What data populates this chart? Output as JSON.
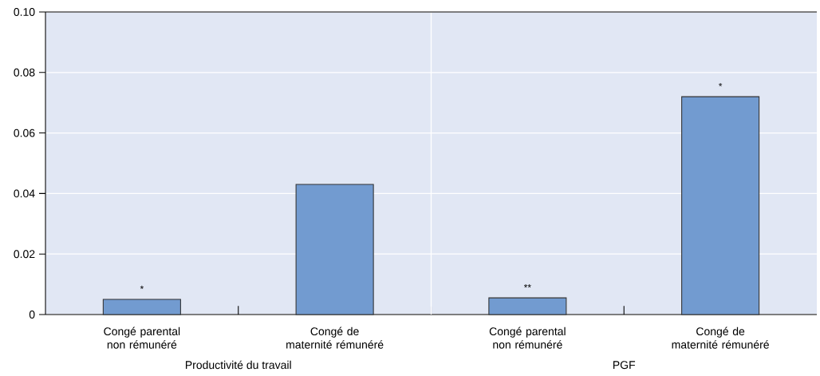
{
  "chart_data": {
    "type": "bar",
    "categories": [
      "Congé parental non rémunéré",
      "Congé de maternité rémunéré",
      "Congé parental non rémunéré",
      "Congé de maternité rémunéré"
    ],
    "values": [
      0.005,
      0.043,
      0.0055,
      0.072
    ],
    "color": "#729bd0",
    "value_labels": [
      "*",
      null,
      "**",
      "*"
    ],
    "ylim": [
      0,
      0.1
    ],
    "yticks": [
      0,
      0.02,
      0.04,
      0.06,
      0.08,
      {
        "value": 0.1,
        "label": "0.10"
      }
    ],
    "grid": "y",
    "annotations": [
      "Productivité du travail",
      "PGF"
    ]
  }
}
